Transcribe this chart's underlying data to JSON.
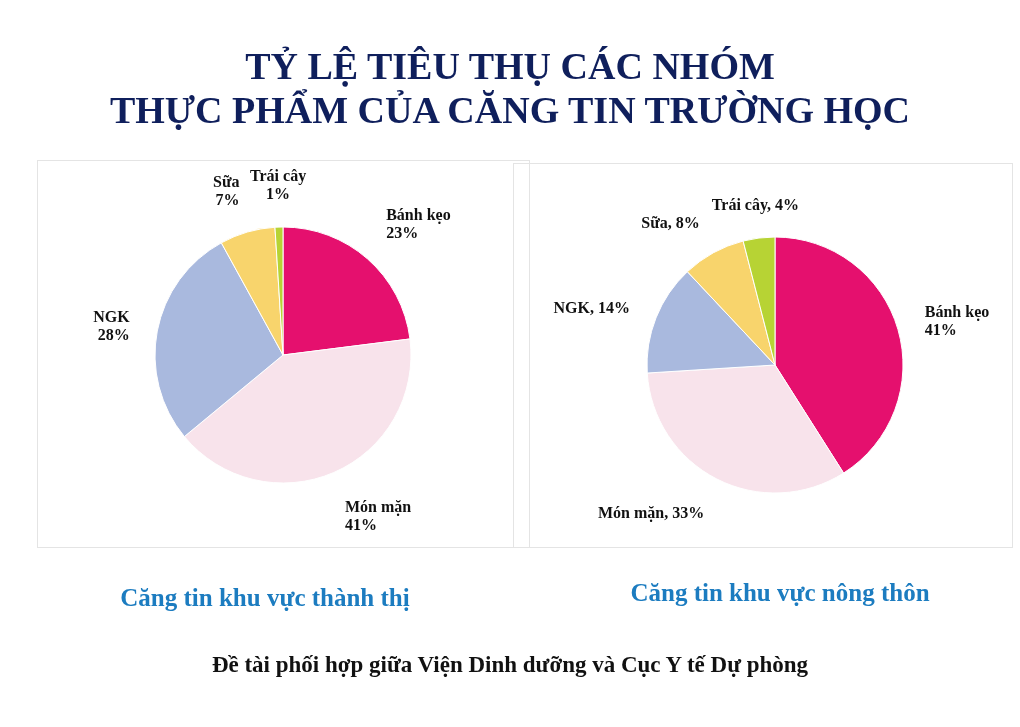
{
  "chart_data": [
    {
      "type": "pie",
      "title": "TỶ LỆ TIÊU THỤ CÁC NHÓM\nTHỰC PHẨM CỦA CĂNG TIN TRƯỜNG HỌC",
      "subtitle": "Căng tin khu vực thành thị",
      "categories": [
        "Bánh kẹo",
        "Món mặn",
        "NGK",
        "Sữa",
        "Trái cây"
      ],
      "values": [
        23,
        41,
        28,
        7,
        1
      ],
      "value_labels": [
        "23%",
        "41%",
        "28%",
        "7%",
        "1%"
      ],
      "colors": [
        "#e5106e",
        "#f8e3eb",
        "#a9b9de",
        "#f8d46c",
        "#b7d334"
      ]
    },
    {
      "type": "pie",
      "subtitle": "Căng tin khu vực nông thôn",
      "categories": [
        "Bánh kẹo",
        "Món mặn",
        "NGK",
        "Sữa",
        "Trái cây"
      ],
      "values": [
        41,
        33,
        14,
        8,
        4
      ],
      "value_labels": [
        "41%",
        "33%",
        "14%",
        "8%",
        "4%"
      ],
      "colors": [
        "#e5106e",
        "#f8e3eb",
        "#a9b9de",
        "#f8d46c",
        "#b7d334"
      ],
      "annotations": [
        "Đề tài phối hợp giữa Viện Dinh dưỡng và Cục Y tế Dự phòng"
      ]
    }
  ]
}
